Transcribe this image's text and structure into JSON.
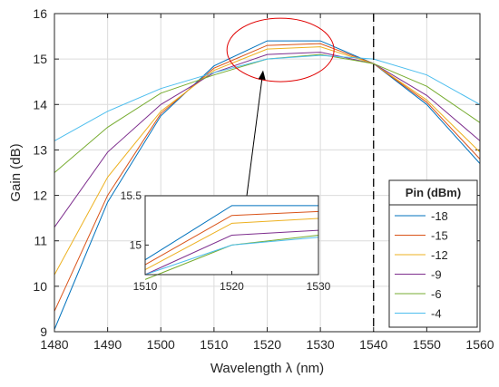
{
  "chart_data": {
    "type": "line",
    "xlabel": "Wavelength λ (nm)",
    "ylabel": "Gain (dB)",
    "xlim": [
      1480,
      1560
    ],
    "ylim": [
      9,
      16
    ],
    "xticks": [
      1480,
      1490,
      1500,
      1510,
      1520,
      1530,
      1540,
      1550,
      1560
    ],
    "yticks": [
      9,
      10,
      11,
      12,
      13,
      14,
      15,
      16
    ],
    "grid": true,
    "vline_x": 1540,
    "legend": {
      "title": "Pin (dBm)",
      "placement": "bottom-right"
    },
    "x": [
      1480,
      1490,
      1500,
      1510,
      1520,
      1530,
      1540,
      1550,
      1560
    ],
    "series": [
      {
        "name": "-18",
        "color": "#0072bd",
        "values": [
          9.05,
          11.85,
          13.75,
          14.85,
          15.4,
          15.4,
          14.9,
          14.0,
          12.7
        ]
      },
      {
        "name": "-15",
        "color": "#d95319",
        "values": [
          9.45,
          12.0,
          13.8,
          14.8,
          15.3,
          15.34,
          14.9,
          14.05,
          12.8
        ]
      },
      {
        "name": "-12",
        "color": "#edb120",
        "values": [
          10.25,
          12.4,
          13.85,
          14.75,
          15.22,
          15.27,
          14.9,
          14.1,
          12.95
        ]
      },
      {
        "name": "-9",
        "color": "#7e2f8e",
        "values": [
          11.3,
          12.95,
          14.0,
          14.7,
          15.1,
          15.15,
          14.9,
          14.2,
          13.2
        ]
      },
      {
        "name": "-6",
        "color": "#77ac30",
        "values": [
          12.5,
          13.5,
          14.25,
          14.65,
          15.0,
          15.1,
          14.9,
          14.4,
          13.6
        ]
      },
      {
        "name": "-4",
        "color": "#4dbeee",
        "values": [
          13.2,
          13.85,
          14.35,
          14.7,
          15.0,
          15.08,
          15.0,
          14.65,
          14.0
        ]
      }
    ],
    "inset": {
      "xlim": [
        1510,
        1530
      ],
      "ylim": [
        14.7,
        15.5
      ],
      "xticks": [
        1510,
        1520,
        1530
      ],
      "yticks": [
        15,
        15.5
      ],
      "ytick_labels": [
        "15",
        "15.5"
      ]
    }
  }
}
